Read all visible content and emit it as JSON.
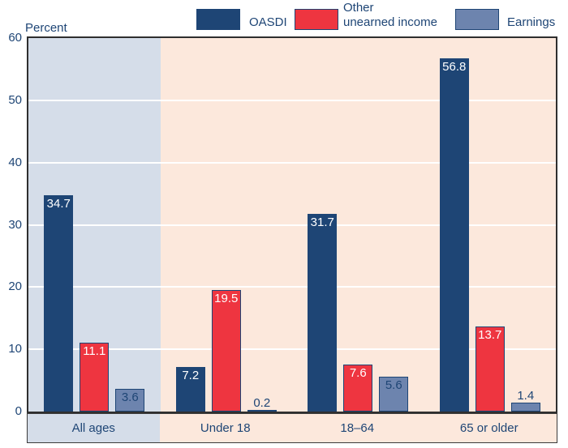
{
  "header": {
    "y_axis_title": "Percent"
  },
  "legend": {
    "items": [
      {
        "label": "OASDI",
        "lines": [
          "OASDI"
        ],
        "color": "#1e4575"
      },
      {
        "label": "Other unearned income",
        "lines": [
          "Other",
          "unearned income"
        ],
        "color": "#ee3540"
      },
      {
        "label": "Earnings",
        "lines": [
          "Earnings"
        ],
        "color": "#6d84ae"
      }
    ]
  },
  "colors": {
    "navy": "#1e4575",
    "red": "#ee3540",
    "slate": "#6d84ae",
    "highlight_band": "#d5dde9",
    "plot_background": "#fce8dc",
    "grid_line": "#ffffff",
    "plot_border": "#2f2f2f",
    "label_on_dark": "#ffffff",
    "label_on_light": "#1e4575"
  },
  "chart_data": {
    "type": "bar",
    "title": "",
    "xlabel": "",
    "ylabel": "Percent",
    "ylim": [
      0,
      60
    ],
    "yticks": [
      0,
      10,
      20,
      30,
      40,
      50,
      60
    ],
    "grid": true,
    "legend_position": "top",
    "categories": [
      "All ages",
      "Under 18",
      "18–64",
      "65 or older"
    ],
    "series": [
      {
        "name": "OASDI",
        "color": "#1e4575",
        "label_color": "#ffffff",
        "values": [
          34.7,
          7.2,
          31.7,
          56.8
        ]
      },
      {
        "name": "Other unearned income",
        "color": "#ee3540",
        "label_color": "#ffffff",
        "values": [
          11.1,
          19.5,
          7.6,
          13.7
        ]
      },
      {
        "name": "Earnings",
        "color": "#6d84ae",
        "label_color": "#1e4575",
        "values": [
          3.6,
          0.2,
          5.6,
          1.4
        ]
      }
    ],
    "annotations": {
      "highlighted_category": "All ages"
    }
  }
}
